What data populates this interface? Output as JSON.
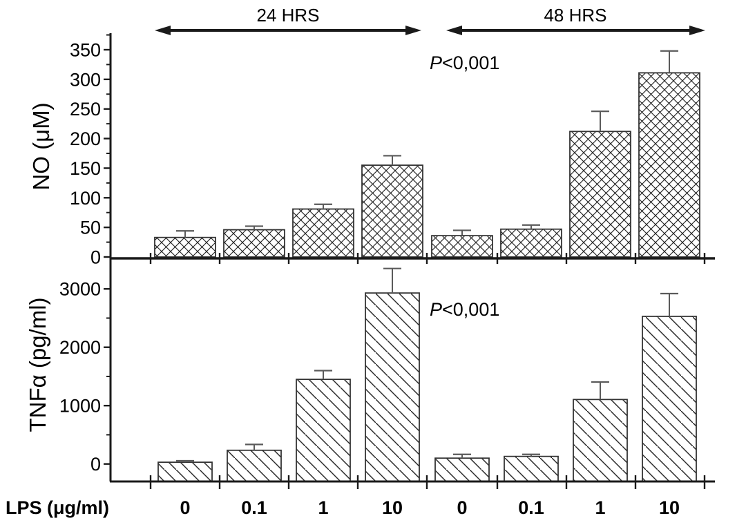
{
  "figure_background": "#ffffff",
  "labels": {
    "arrow_24": "24 HRS",
    "arrow_48": "48 HRS",
    "y_top": "NO (μM)",
    "y_bottom": "TNFα (pg/ml)",
    "x_axis": "LPS (μg/ml)",
    "p_prefix": "P",
    "p_value_top": "<0,001",
    "p_value_bottom": "<0,001"
  },
  "colors": {
    "axis": "#1a1a1a",
    "bar_stroke": "#333333",
    "hatch": "#2a2a2a",
    "error_bar": "#5a5a5a",
    "text": "#000000"
  },
  "x_axis": {
    "label": "LPS (μg/ml)",
    "tick_labels": [
      "0",
      "0.1",
      "1",
      "10",
      "0",
      "0.1",
      "1",
      "10"
    ]
  },
  "chart_data": [
    {
      "type": "bar",
      "panel": "top",
      "ylabel": "NO (μM)",
      "ylim": [
        0,
        378
      ],
      "yticks": [
        0,
        50,
        100,
        150,
        200,
        250,
        300,
        350
      ],
      "yminor_step": 25,
      "grid": false,
      "annotation": "P<0,001",
      "hatch": "crosshatch",
      "groups": [
        {
          "name": "24 HRS",
          "categories": [
            "0",
            "0.1",
            "1",
            "10"
          ],
          "values": [
            33,
            46,
            81,
            155
          ],
          "errors": [
            11,
            6,
            8,
            16
          ]
        },
        {
          "name": "48 HRS",
          "categories": [
            "0",
            "0.1",
            "1",
            "10"
          ],
          "values": [
            36,
            47,
            212,
            311
          ],
          "errors": [
            9,
            7,
            34,
            37
          ]
        }
      ]
    },
    {
      "type": "bar",
      "panel": "bottom",
      "ylabel": "TNFα (pg/ml)",
      "ylim": [
        -300,
        3500
      ],
      "yticks": [
        0,
        1000,
        2000,
        3000
      ],
      "yminor": [
        500,
        1500,
        2500
      ],
      "grid": false,
      "annotation": "P<0,001",
      "hatch": "diagonal",
      "groups": [
        {
          "name": "24 HRS",
          "categories": [
            "0",
            "0.1",
            "1",
            "10"
          ],
          "values": [
            30,
            235,
            1450,
            2930
          ],
          "errors": [
            25,
            100,
            150,
            420
          ]
        },
        {
          "name": "48 HRS",
          "categories": [
            "0",
            "0.1",
            "1",
            "10"
          ],
          "values": [
            100,
            130,
            1105,
            2530
          ],
          "errors": [
            65,
            35,
            300,
            390
          ]
        }
      ]
    }
  ]
}
